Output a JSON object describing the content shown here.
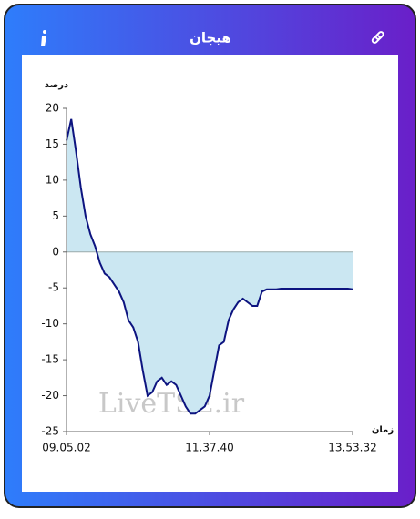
{
  "chart_data": {
    "type": "area",
    "title": "هیجان",
    "y_label": "درصد",
    "x_label": "زمان",
    "watermark": "LiveTSE.ir",
    "color": "#0d1480",
    "fill": "#cbe7f2",
    "x": [
      0,
      1,
      2,
      3,
      4,
      5,
      6,
      7,
      8,
      9,
      10,
      11,
      12,
      13,
      14,
      15,
      16,
      17,
      18,
      19,
      20,
      21,
      22,
      23,
      24,
      25,
      26,
      27,
      28,
      29,
      30,
      31,
      32,
      33,
      34,
      35,
      36,
      37,
      38,
      39,
      40,
      41,
      42,
      43,
      44,
      45,
      46,
      47,
      48,
      49,
      50,
      51,
      52,
      53,
      54,
      55,
      56,
      57,
      58,
      59,
      60
    ],
    "values": [
      15.5,
      18.5,
      14,
      9,
      5,
      2.5,
      0.8,
      -1.5,
      -3,
      -3.5,
      -4.5,
      -5.5,
      -7,
      -9.5,
      -10.5,
      -12.5,
      -16.5,
      -20,
      -19.5,
      -18,
      -17.5,
      -18.5,
      -18,
      -18.5,
      -20,
      -21.5,
      -22.5,
      -22.5,
      -22,
      -21.5,
      -20,
      -16.5,
      -13,
      -12.5,
      -9.5,
      -8,
      -7,
      -6.5,
      -7,
      -7.5,
      -7.5,
      -5.5,
      -5.2,
      -5.2,
      -5.2,
      -5.1,
      -5.1,
      -5.1,
      -5.1,
      -5.1,
      -5.1,
      -5.1,
      -5.1,
      -5.1,
      -5.1,
      -5.1,
      -5.1,
      -5.1,
      -5.1,
      -5.1,
      -5.2
    ],
    "xlim": [
      0,
      60
    ],
    "xticks": [
      {
        "value": 0,
        "label": "09.05.02"
      },
      {
        "value": 30,
        "label": "11.37.40"
      },
      {
        "value": 60,
        "label": "13.53.32"
      }
    ],
    "ylim": [
      -25,
      20
    ],
    "yticks": [
      -25,
      -20,
      -15,
      -10,
      -5,
      0,
      5,
      10,
      15,
      20
    ]
  }
}
